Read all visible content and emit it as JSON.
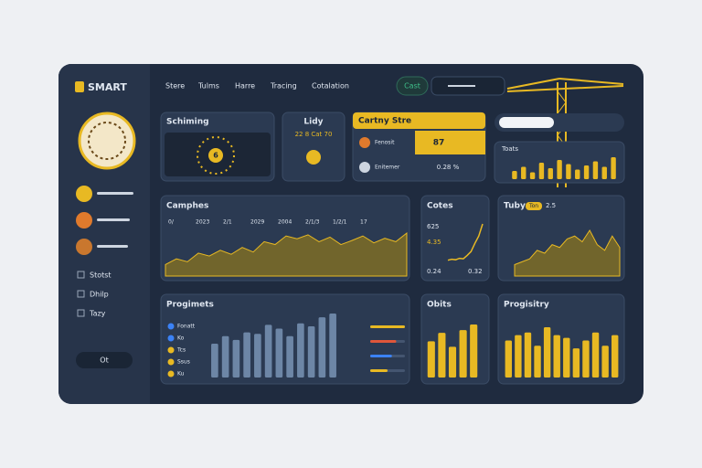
{
  "brand": "SMART",
  "nav": [
    "Stere",
    "Tulms",
    "Harre",
    "Tracing",
    "Cotalation"
  ],
  "nav_button": "Cast",
  "sidebar": {
    "menu": [
      "Stotst",
      "Dhilp",
      "Tazy"
    ],
    "button": "Ot"
  },
  "cards": {
    "schiming": {
      "title": "Schiming",
      "value": "6"
    },
    "lidy": {
      "title": "Lidy",
      "stat": "22 8 Cat 70"
    },
    "store": {
      "title": "Cartny Stre",
      "rows": [
        {
          "label": "Fenosit",
          "value": "87"
        },
        {
          "label": "Enitemer",
          "value": "0.28 %"
        }
      ]
    },
    "toats": {
      "title": "Toats",
      "values": [
        30,
        45,
        25,
        60,
        40,
        70,
        55,
        35,
        50,
        65,
        45,
        80
      ]
    },
    "camphes": {
      "title": "Camphes",
      "labels": [
        "0/",
        "2023",
        "2/1",
        "2029",
        "2004",
        "2/1/3",
        "1/2/1",
        "17"
      ],
      "values": [
        20,
        30,
        25,
        40,
        35,
        45,
        38,
        50,
        42,
        60,
        55,
        70,
        65,
        72,
        60,
        68,
        55,
        62,
        70,
        58,
        66,
        60,
        75
      ]
    },
    "cotes": {
      "title": "Cotes",
      "top": "625",
      "mid": "4.35",
      "left": "0.24",
      "right": "0.32",
      "values": [
        10,
        12,
        11,
        14,
        13,
        20,
        28,
        45,
        60,
        85
      ]
    },
    "tuby": {
      "title": "Tuby",
      "badge": "Ton",
      "extra": "2.5",
      "values": [
        20,
        25,
        30,
        45,
        40,
        55,
        50,
        65,
        70,
        60,
        80,
        55,
        45,
        70,
        50
      ]
    },
    "progimets": {
      "title": "Progimets",
      "legend": [
        "Fonatt",
        "Ko",
        "Tcs",
        "Ssus",
        "Ku"
      ],
      "values": [
        45,
        55,
        50,
        60,
        58,
        70,
        65,
        55,
        72,
        68,
        80,
        85
      ],
      "progress": [
        80,
        60,
        50,
        40
      ]
    },
    "obits": {
      "title": "Obits",
      "values": [
        65,
        80,
        55,
        85,
        95
      ]
    },
    "progisitry": {
      "title": "Progisitry",
      "values": [
        70,
        80,
        85,
        60,
        95,
        80,
        75,
        55,
        70,
        85,
        60,
        80
      ]
    }
  }
}
